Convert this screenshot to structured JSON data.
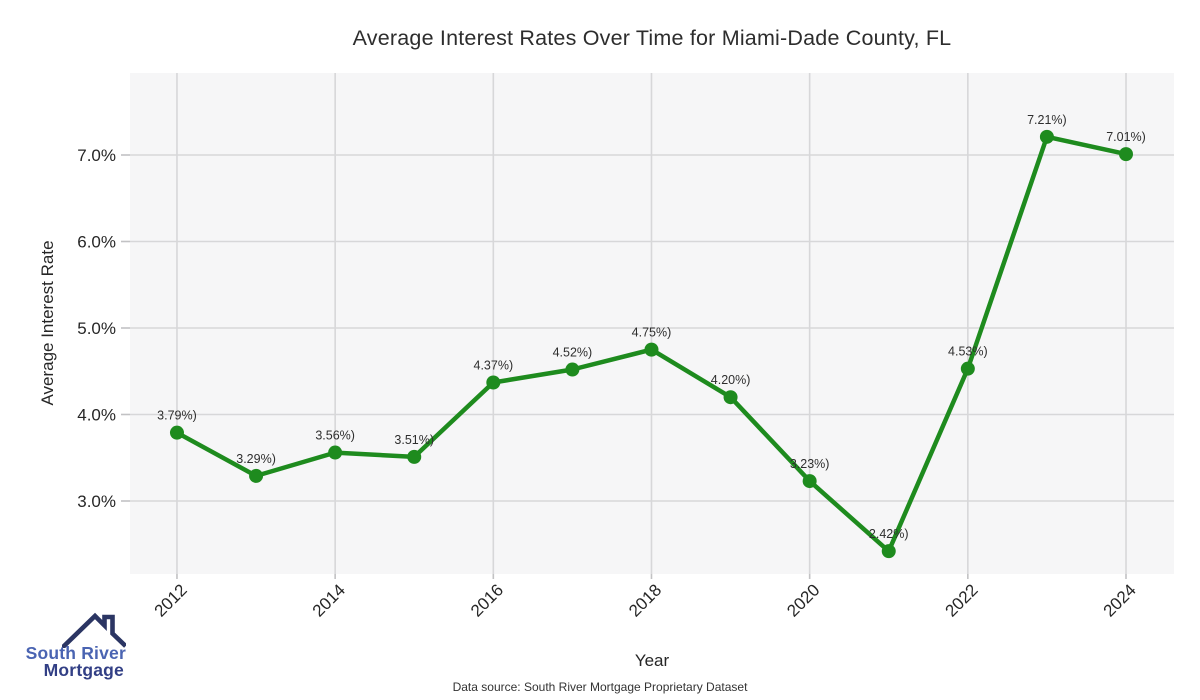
{
  "title": "Average Interest Rates Over Time for Miami-Dade County, FL",
  "x_axis_label": "Year",
  "y_axis_label": "Average Interest Rate",
  "source_note": "Data source: South River Mortgage Proprietary Dataset",
  "logo": {
    "line1": "South River",
    "line2": "Mortgage",
    "roof_color": "#2b3563",
    "line1_color": "#4a64b2",
    "line2_color": "#323f85"
  },
  "chart_data": {
    "type": "line",
    "title": "Average Interest Rates Over Time for Miami-Dade County, FL",
    "xlabel": "Year",
    "ylabel": "Average Interest Rate",
    "x": [
      2012,
      2013,
      2014,
      2015,
      2016,
      2017,
      2018,
      2019,
      2020,
      2021,
      2022,
      2023,
      2024
    ],
    "values": [
      3.79,
      3.29,
      3.56,
      3.51,
      4.37,
      4.52,
      4.75,
      4.2,
      3.23,
      2.42,
      4.53,
      7.21,
      7.01
    ],
    "point_labels": [
      "3.79%)",
      "3.29%)",
      "3.56%)",
      "3.51%)",
      "4.37%)",
      "4.52%)",
      "4.75%)",
      "4.20%)",
      "3.23%)",
      "2.42%)",
      "4.53%)",
      "7.21%)",
      "7.01%)"
    ],
    "x_ticks": [
      2012,
      2014,
      2016,
      2018,
      2020,
      2022,
      2024
    ],
    "x_tick_labels": [
      "2012",
      "2014",
      "2016",
      "2018",
      "2020",
      "2022",
      "2024"
    ],
    "y_ticks": [
      3,
      4,
      5,
      6,
      7
    ],
    "y_tick_labels": [
      "3.0%",
      "4.0%",
      "5.0%",
      "6.0%",
      "7.0%"
    ],
    "xlim": [
      2011.406,
      2024.607
    ],
    "ylim": [
      2.156,
      7.948
    ],
    "grid": true,
    "legend": "none",
    "style": {
      "line_color": "#1e8b1e",
      "line_width": 4.5,
      "marker_radius": 7,
      "panel_color": "#f6f6f7",
      "grid_color": "#d7d7d9",
      "tick_color": "#c2c2c4",
      "tick_label_color": "#262626",
      "tick_label_size": 17,
      "x_tick_rotation": -45,
      "point_label_color": "#2e2e2e",
      "point_label_size": 12.5
    }
  }
}
